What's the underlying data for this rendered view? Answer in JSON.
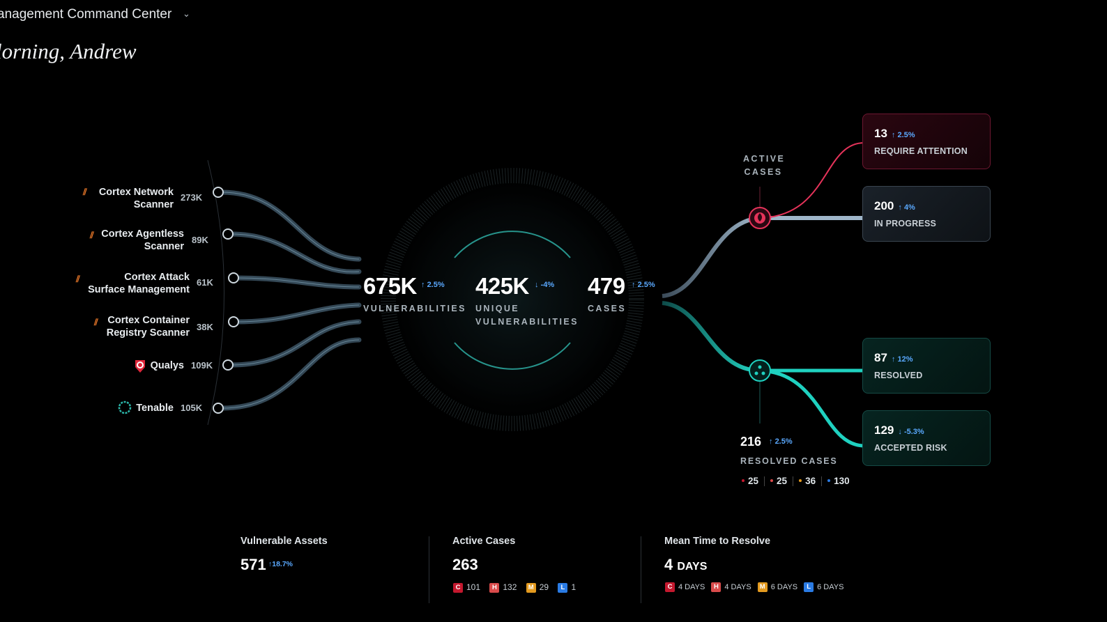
{
  "header": {
    "title": "anagement Command Center",
    "greeting": "lorning, Andrew"
  },
  "sources": [
    {
      "name_line1": "Cortex Network",
      "name_line2": "Scanner",
      "value": "273K",
      "icon": "cortex-icon"
    },
    {
      "name_line1": "Cortex Agentless",
      "name_line2": "Scanner",
      "value": "89K",
      "icon": "cortex-icon"
    },
    {
      "name_line1": "Cortex Attack",
      "name_line2": "Surface Management",
      "value": "61K",
      "icon": "cortex-icon"
    },
    {
      "name_line1": "Cortex Container",
      "name_line2": "Registry Scanner",
      "value": "38K",
      "icon": "cortex-icon"
    },
    {
      "name_line1": "Qualys",
      "name_line2": "",
      "value": "109K",
      "icon": "qualys-icon"
    },
    {
      "name_line1": "Tenable",
      "name_line2": "",
      "value": "105K",
      "icon": "tenable-icon"
    }
  ],
  "hub": {
    "vulnerabilities": {
      "value": "675K",
      "delta": "2.5%",
      "label": "VULNERABILITIES"
    },
    "unique": {
      "value": "425K",
      "delta": "-4%",
      "label_line1": "UNIQUE",
      "label_line2": "VULNERABILITIES"
    },
    "cases": {
      "value": "479",
      "delta": "2.5%",
      "label": "CASES"
    }
  },
  "active_cases": {
    "label_line1": "ACTIVE",
    "label_line2": "CASES",
    "cards": [
      {
        "value": "13",
        "delta": "2.5%",
        "label": "REQUIRE ATTENTION"
      },
      {
        "value": "200",
        "delta": "4%",
        "label": "IN PROGRESS"
      }
    ]
  },
  "resolved_cases": {
    "value": "216",
    "delta": "2.5%",
    "label": "RESOLVED CASES",
    "cards": [
      {
        "value": "87",
        "delta": "12%",
        "label": "RESOLVED"
      },
      {
        "value": "129",
        "delta": "-5.3%",
        "label": "ACCEPTED RISK"
      }
    ],
    "severity_counts": [
      "25",
      "25",
      "36",
      "130"
    ]
  },
  "metrics": {
    "vulnerable_assets": {
      "title": "Vulnerable Assets",
      "value": "571",
      "delta": "18.7%"
    },
    "active_cases": {
      "title": "Active Cases",
      "value": "263",
      "badges": [
        {
          "letter": "C",
          "value": "101"
        },
        {
          "letter": "H",
          "value": "132"
        },
        {
          "letter": "M",
          "value": "29"
        },
        {
          "letter": "L",
          "value": "1"
        }
      ]
    },
    "mttr": {
      "title": "Mean Time to Resolve",
      "value": "4",
      "unit": "DAYS",
      "badges": [
        {
          "letter": "C",
          "value": "4 DAYS"
        },
        {
          "letter": "H",
          "value": "4 DAYS"
        },
        {
          "letter": "M",
          "value": "6 DAYS"
        },
        {
          "letter": "L",
          "value": "6 DAYS"
        }
      ]
    }
  },
  "colors": {
    "accent_blue": "#5aa9ff",
    "critical": "#c4182e",
    "high": "#d94b4b",
    "medium": "#e39a1f",
    "low": "#2a7be4",
    "teal": "#1fd1c0",
    "attention_red": "#e5335a"
  }
}
